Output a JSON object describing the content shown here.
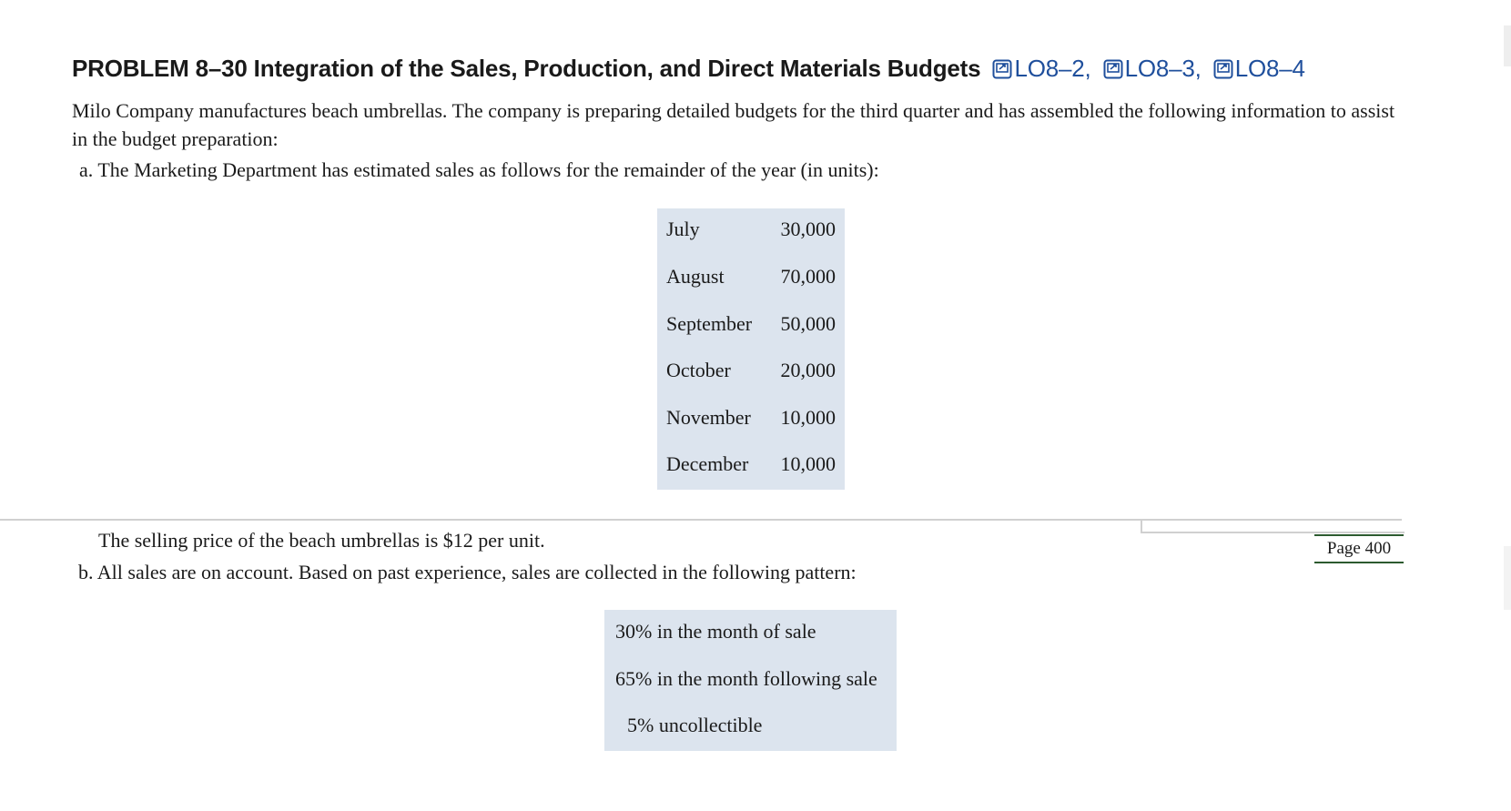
{
  "heading": {
    "title": "PROBLEM 8–30 Integration of the Sales, Production, and Direct Materials Budgets",
    "learning_objectives": [
      "LO8–2,",
      "LO8–3,",
      "LO8–4"
    ],
    "link_icon": "external-link-icon",
    "link_color": "#1f4f9c"
  },
  "intro": "Milo Company manufactures beach umbrellas. The company is preparing detailed budgets for the third quarter and has assembled the following information to assist in the budget preparation:",
  "item_a": "a. The Marketing Department has estimated sales as follows for the remainder of the year (in units):",
  "sales": [
    {
      "month": "July",
      "units": "30,000"
    },
    {
      "month": "August",
      "units": "70,000"
    },
    {
      "month": "September",
      "units": "50,000"
    },
    {
      "month": "October",
      "units": "20,000"
    },
    {
      "month": "November",
      "units": "10,000"
    },
    {
      "month": "December",
      "units": "10,000"
    }
  ],
  "price_line": "The selling price of the beach umbrellas is $12 per unit.",
  "item_b": "b. All sales are on account. Based on past experience, sales are collected in the following pattern:",
  "page_label": "Page 400",
  "collection_pattern": [
    "30% in the month of sale",
    "65% in the month following sale",
    "5% uncollectible"
  ],
  "colors": {
    "table_bg": "#dce4ee",
    "page_rule": "#2c5a2f"
  }
}
